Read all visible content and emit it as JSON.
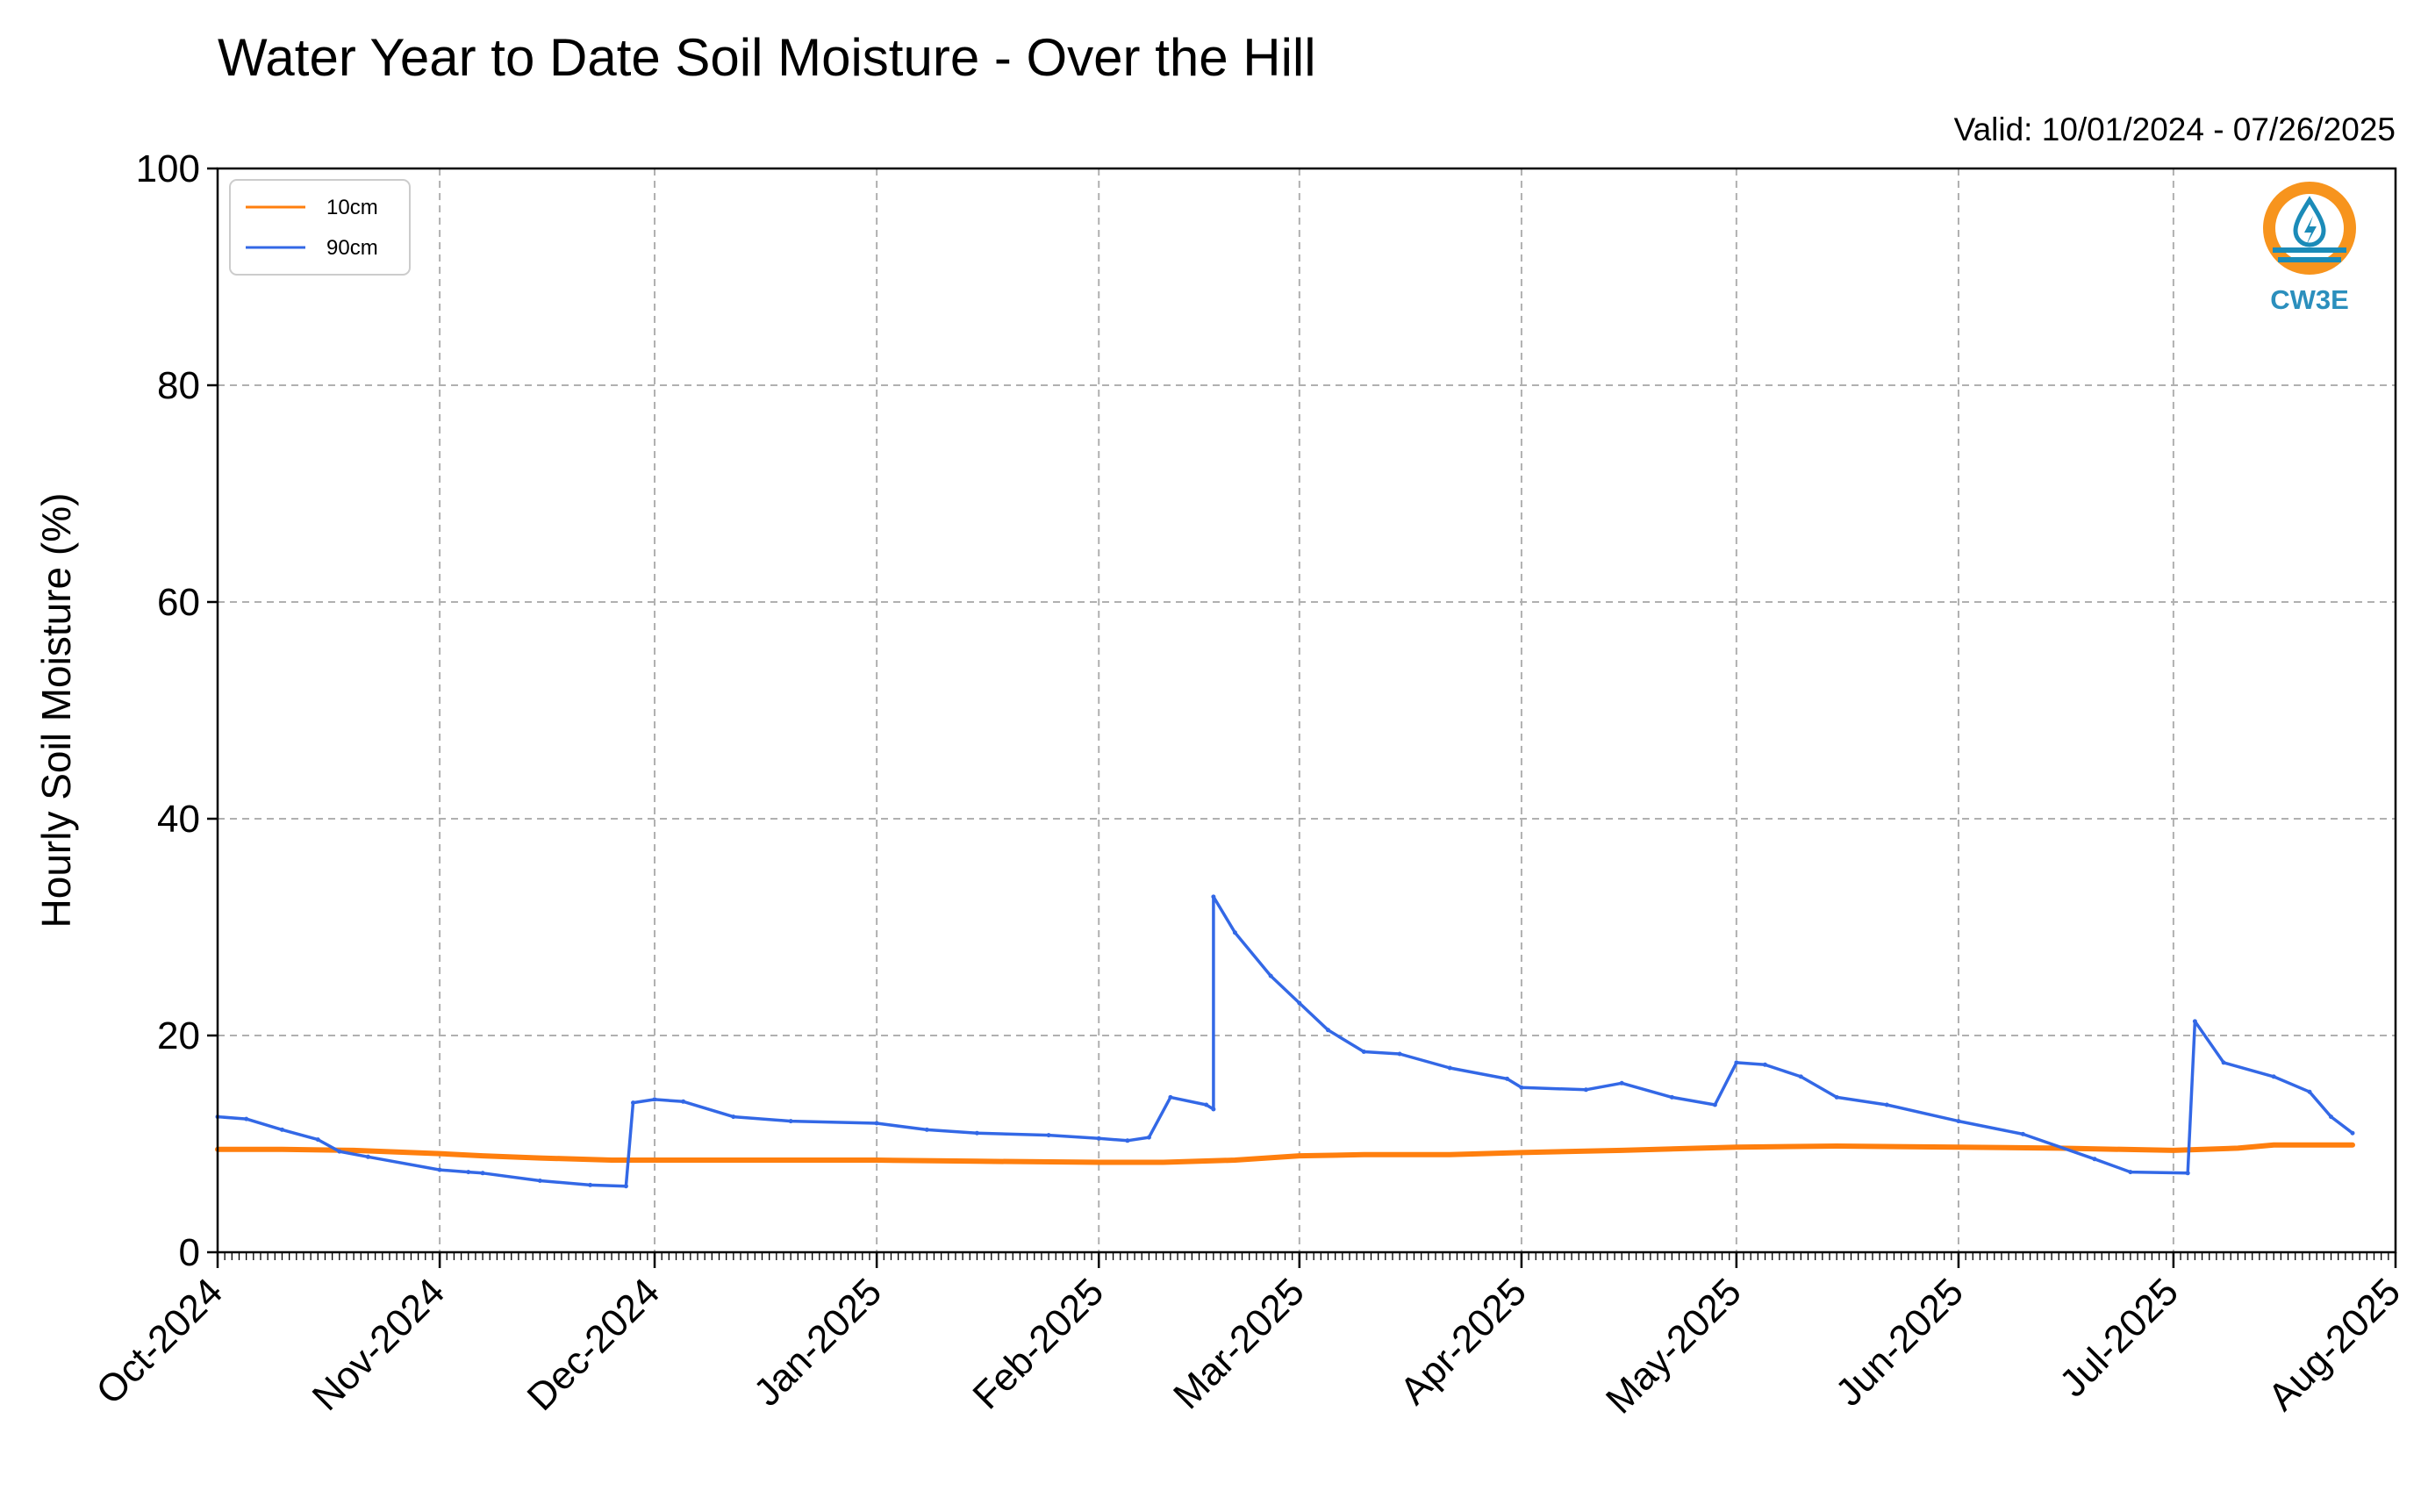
{
  "chart_data": {
    "type": "line",
    "title": "Water Year to Date Soil Moisture - Over the Hill",
    "subtitle": "Valid: 10/01/2024 - 07/26/2025",
    "xlabel": "",
    "ylabel": "Hourly Soil Moisture (%)",
    "ylim": [
      0,
      100
    ],
    "yticks": [
      "0",
      "20",
      "40",
      "60",
      "80",
      "100"
    ],
    "xlim": [
      "2024-10-01",
      "2025-08-01"
    ],
    "xticks": [
      {
        "date": "2024-10-01",
        "label": "Oct-2024"
      },
      {
        "date": "2024-11-01",
        "label": "Nov-2024"
      },
      {
        "date": "2024-12-01",
        "label": "Dec-2024"
      },
      {
        "date": "2025-01-01",
        "label": "Jan-2025"
      },
      {
        "date": "2025-02-01",
        "label": "Feb-2025"
      },
      {
        "date": "2025-03-01",
        "label": "Mar-2025"
      },
      {
        "date": "2025-04-01",
        "label": "Apr-2025"
      },
      {
        "date": "2025-05-01",
        "label": "May-2025"
      },
      {
        "date": "2025-06-01",
        "label": "Jun-2025"
      },
      {
        "date": "2025-07-01",
        "label": "Jul-2025"
      },
      {
        "date": "2025-08-01",
        "label": "Aug-2025"
      }
    ],
    "grid": true,
    "legend_position": "top-left",
    "series": [
      {
        "name": "10cm",
        "color": "#ff7f0e",
        "points": [
          [
            "2024-10-01",
            9.5
          ],
          [
            "2024-10-10",
            9.5
          ],
          [
            "2024-10-20",
            9.4
          ],
          [
            "2024-11-01",
            9.1
          ],
          [
            "2024-11-07",
            8.9
          ],
          [
            "2024-11-15",
            8.7
          ],
          [
            "2024-11-25",
            8.5
          ],
          [
            "2024-12-01",
            8.5
          ],
          [
            "2024-12-15",
            8.5
          ],
          [
            "2025-01-01",
            8.5
          ],
          [
            "2025-01-15",
            8.4
          ],
          [
            "2025-02-01",
            8.3
          ],
          [
            "2025-02-10",
            8.3
          ],
          [
            "2025-02-20",
            8.5
          ],
          [
            "2025-03-01",
            8.9
          ],
          [
            "2025-03-10",
            9.0
          ],
          [
            "2025-03-22",
            9.0
          ],
          [
            "2025-04-01",
            9.2
          ],
          [
            "2025-04-15",
            9.4
          ],
          [
            "2025-05-01",
            9.7
          ],
          [
            "2025-05-15",
            9.8
          ],
          [
            "2025-06-01",
            9.7
          ],
          [
            "2025-06-15",
            9.6
          ],
          [
            "2025-07-01",
            9.4
          ],
          [
            "2025-07-10",
            9.6
          ],
          [
            "2025-07-15",
            9.9
          ],
          [
            "2025-07-26",
            9.9
          ]
        ]
      },
      {
        "name": "90cm",
        "color": "#3368e6",
        "points": [
          [
            "2024-10-01",
            12.5
          ],
          [
            "2024-10-05",
            12.3
          ],
          [
            "2024-10-10",
            11.3
          ],
          [
            "2024-10-15",
            10.4
          ],
          [
            "2024-10-18",
            9.3
          ],
          [
            "2024-10-22",
            8.8
          ],
          [
            "2024-11-01",
            7.6
          ],
          [
            "2024-11-05",
            7.4
          ],
          [
            "2024-11-07",
            7.3
          ],
          [
            "2024-11-15",
            6.6
          ],
          [
            "2024-11-22",
            6.2
          ],
          [
            "2024-11-27",
            6.1
          ],
          [
            "2024-11-28",
            13.8
          ],
          [
            "2024-12-01",
            14.1
          ],
          [
            "2024-12-05",
            13.9
          ],
          [
            "2024-12-12",
            12.5
          ],
          [
            "2024-12-20",
            12.1
          ],
          [
            "2025-01-01",
            11.9
          ],
          [
            "2025-01-08",
            11.3
          ],
          [
            "2025-01-15",
            11.0
          ],
          [
            "2025-01-25",
            10.8
          ],
          [
            "2025-02-01",
            10.5
          ],
          [
            "2025-02-05",
            10.3
          ],
          [
            "2025-02-08",
            10.6
          ],
          [
            "2025-02-11",
            14.3
          ],
          [
            "2025-02-16",
            13.6
          ],
          [
            "2025-02-17",
            13.2
          ],
          [
            "2025-02-17",
            32.8
          ],
          [
            "2025-02-20",
            29.5
          ],
          [
            "2025-02-25",
            25.5
          ],
          [
            "2025-03-01",
            23.0
          ],
          [
            "2025-03-05",
            20.5
          ],
          [
            "2025-03-10",
            18.5
          ],
          [
            "2025-03-15",
            18.3
          ],
          [
            "2025-03-22",
            17.0
          ],
          [
            "2025-03-30",
            16.0
          ],
          [
            "2025-04-01",
            15.2
          ],
          [
            "2025-04-10",
            15.0
          ],
          [
            "2025-04-15",
            15.6
          ],
          [
            "2025-04-22",
            14.3
          ],
          [
            "2025-04-28",
            13.6
          ],
          [
            "2025-05-01",
            17.5
          ],
          [
            "2025-05-05",
            17.3
          ],
          [
            "2025-05-10",
            16.2
          ],
          [
            "2025-05-15",
            14.3
          ],
          [
            "2025-05-22",
            13.6
          ],
          [
            "2025-06-01",
            12.1
          ],
          [
            "2025-06-10",
            10.9
          ],
          [
            "2025-06-20",
            8.6
          ],
          [
            "2025-06-25",
            7.4
          ],
          [
            "2025-07-03",
            7.3
          ],
          [
            "2025-07-04",
            21.3
          ],
          [
            "2025-07-08",
            17.5
          ],
          [
            "2025-07-15",
            16.2
          ],
          [
            "2025-07-20",
            14.8
          ],
          [
            "2025-07-23",
            12.5
          ],
          [
            "2025-07-26",
            11.0
          ]
        ]
      }
    ]
  },
  "logo": {
    "text": "CW3E",
    "colors": {
      "ring": "#f7941d",
      "water": "#1b8bb8",
      "text": "#2b8fbd"
    }
  }
}
